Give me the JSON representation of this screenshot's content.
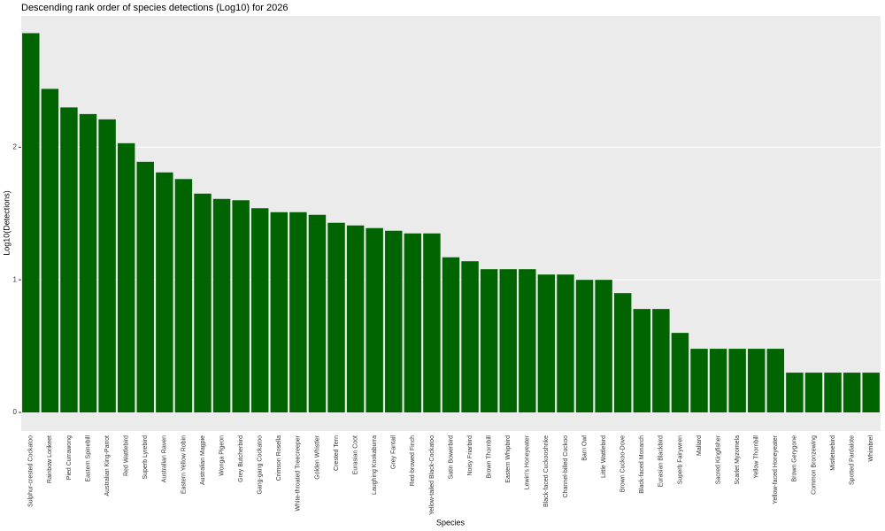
{
  "chart_data": {
    "type": "bar",
    "title": "Descending rank order of species detections (Log10) for 2026",
    "x_label": "Species",
    "y_label": "Log10(Detections)",
    "categories": [
      "Sulphur-crested Cockatoo",
      "Rainbow Lorikeet",
      "Pied Currawong",
      "Eastern Spinebill",
      "Australian King-Parrot",
      "Red Wattlebird",
      "Superb Lyrebird",
      "Australian Raven",
      "Eastern Yellow Robin",
      "Australian Magpie",
      "Wonga Pigeon",
      "Grey Butcherbird",
      "Gang-gang Cockatoo",
      "Crimson Rosella",
      "White-throated Treecreeper",
      "Golden Whistler",
      "Crested Tern",
      "Eurasian Coot",
      "Laughing Kookaburra",
      "Grey Fantail",
      "Red-browed Finch",
      "Yellow-tailed Black-Cockatoo",
      "Satin Bowerbird",
      "Noisy Friarbird",
      "Brown Thornbill",
      "Eastern Whipbird",
      "Lewin's Honeyeater",
      "Black-faced Cuckooshrike",
      "Channel-billed Cuckoo",
      "Barn Owl",
      "Little Wattlebird",
      "Brown Cuckoo-Dove",
      "Black-faced Monarch",
      "Eurasian Blackbird",
      "Superb Fairywren",
      "Mallard",
      "Sacred Kingfisher",
      "Scarlet Myzomela",
      "Yellow Thornbill",
      "Yellow-faced Honeyeater",
      "Brown Gerygone",
      "Common Bronzewing",
      "Mistletoebird",
      "Spotted Pardalote",
      "Whimbrel"
    ],
    "values": [
      2.86,
      2.44,
      2.3,
      2.25,
      2.21,
      2.03,
      1.89,
      1.81,
      1.76,
      1.65,
      1.61,
      1.6,
      1.54,
      1.51,
      1.51,
      1.49,
      1.43,
      1.41,
      1.39,
      1.37,
      1.35,
      1.35,
      1.17,
      1.14,
      1.08,
      1.08,
      1.08,
      1.04,
      1.04,
      1.0,
      1.0,
      0.9,
      0.78,
      0.78,
      0.6,
      0.48,
      0.48,
      0.48,
      0.48,
      0.48,
      0.3,
      0.3,
      0.3,
      0.3,
      0.3
    ],
    "color": "#006400",
    "ylim": [
      -0.14,
      2.99
    ],
    "yticks": [
      0,
      1,
      2
    ],
    "grid": true
  }
}
